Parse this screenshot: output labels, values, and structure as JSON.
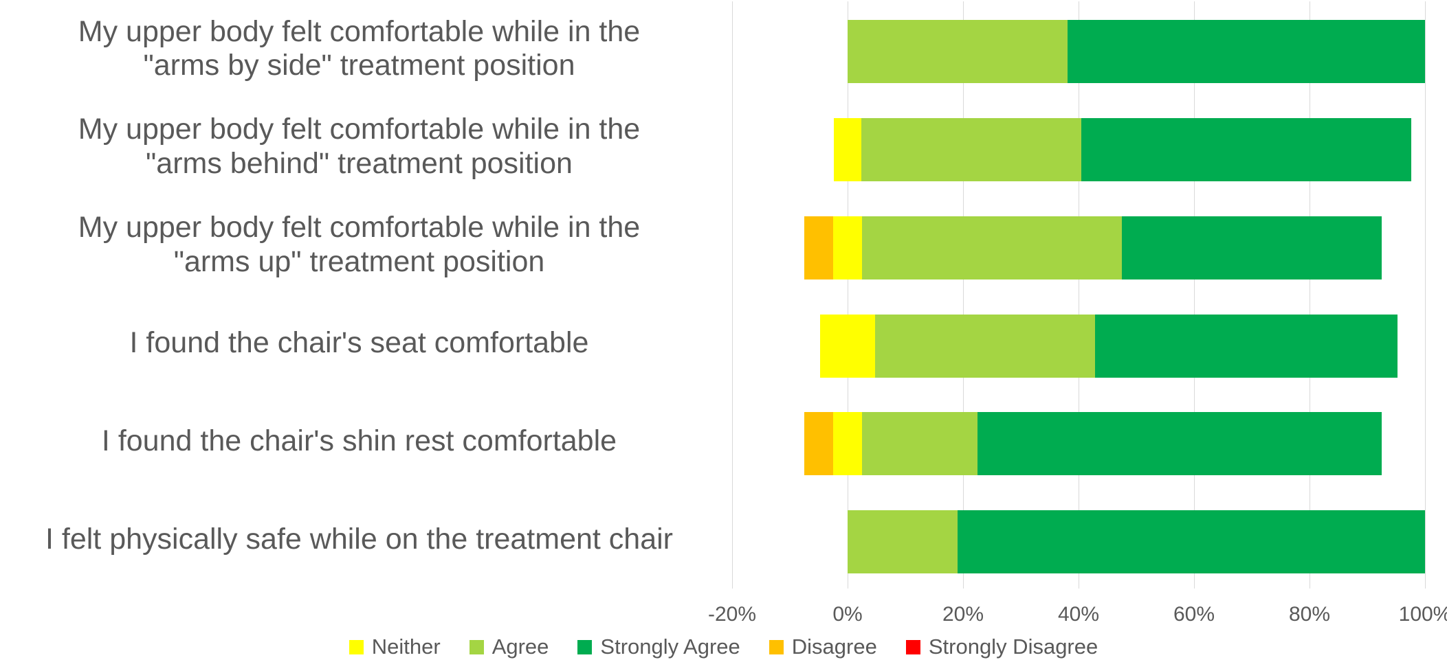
{
  "chart_data": {
    "type": "bar",
    "orientation": "horizontal",
    "stacking": "diverging",
    "units": "percent of respondents",
    "title": "",
    "xlabel": "",
    "ylabel": "",
    "categories": [
      "My upper body felt comfortable while in the\n\"arms by side\" treatment position",
      "My upper body felt comfortable while in the\n\"arms behind\" treatment position",
      "My upper body felt comfortable while in the\n\"arms up\" treatment position",
      "I found the chair's seat comfortable",
      "I found the chair's shin rest comfortable",
      "I felt physically safe while on the treatment chair"
    ],
    "series": [
      {
        "name": "Strongly Disagree",
        "color": "#ff0000",
        "values": [
          0,
          0,
          0,
          0,
          0,
          0
        ]
      },
      {
        "name": "Disagree",
        "color": "#ffc000",
        "values": [
          0,
          0,
          5,
          0,
          5,
          0
        ]
      },
      {
        "name": "Neither",
        "color": "#ffff00",
        "values": [
          0,
          4.8,
          5,
          9.5,
          5,
          0
        ]
      },
      {
        "name": "Agree",
        "color": "#a4d543",
        "values": [
          38.1,
          38.1,
          45,
          38.1,
          20,
          19
        ]
      },
      {
        "name": "Strongly Agree",
        "color": "#00ac50",
        "values": [
          61.9,
          57.1,
          45,
          52.4,
          70,
          81
        ]
      }
    ],
    "neither_split_across_zero": true,
    "xlim": [
      -20,
      100
    ],
    "x_ticks": [
      "-20%",
      "0%",
      "20%",
      "40%",
      "60%",
      "80%",
      "100%"
    ],
    "grid": "vertical",
    "legend": {
      "position": "bottom",
      "order": [
        "Neither",
        "Agree",
        "Strongly Agree",
        "Disagree",
        "Strongly Disagree"
      ]
    }
  },
  "styles": {
    "text_color": "#595959",
    "gridline_color": "#d9d9d9",
    "background": "#ffffff"
  }
}
